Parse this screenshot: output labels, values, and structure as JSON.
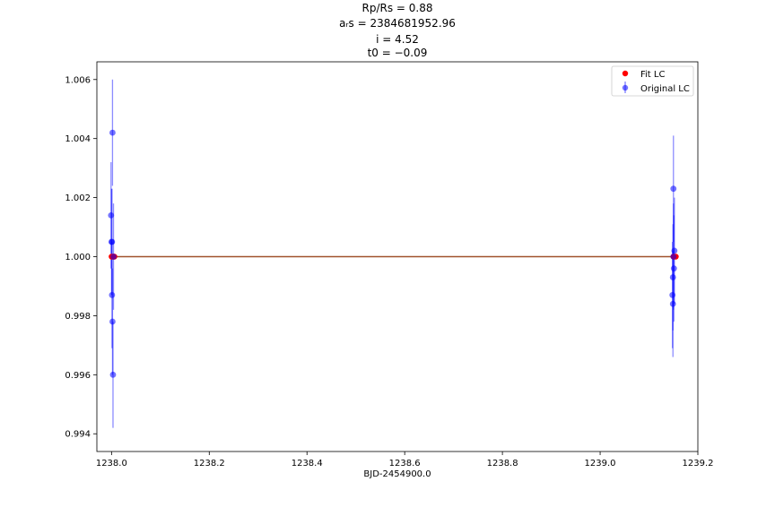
{
  "chart_data": {
    "type": "scatter",
    "title_lines": [
      "Rp/Rs = 0.88",
      "aᵣs = 2384681952.96",
      "i = 4.52",
      "t0 = −0.09"
    ],
    "xlabel": "BJD-2454900.0",
    "ylabel": "",
    "xlim": [
      1237.97,
      1239.2
    ],
    "ylim": [
      0.9934,
      1.0066
    ],
    "xticks": [
      {
        "value": 1238.0,
        "label": "1238.0"
      },
      {
        "value": 1238.2,
        "label": "1238.2"
      },
      {
        "value": 1238.4,
        "label": "1238.4"
      },
      {
        "value": 1238.6,
        "label": "1238.6"
      },
      {
        "value": 1238.8,
        "label": "1238.8"
      },
      {
        "value": 1239.0,
        "label": "1239.0"
      },
      {
        "value": 1239.2,
        "label": "1239.2"
      }
    ],
    "yticks": [
      {
        "value": 0.994,
        "label": "0.994"
      },
      {
        "value": 0.996,
        "label": "0.996"
      },
      {
        "value": 0.998,
        "label": "0.998"
      },
      {
        "value": 1.0,
        "label": "1.000"
      },
      {
        "value": 1.002,
        "label": "1.002"
      },
      {
        "value": 1.004,
        "label": "1.004"
      },
      {
        "value": 1.006,
        "label": "1.006"
      }
    ],
    "legend": {
      "position": "top-right",
      "entries": [
        {
          "name": "Fit LC",
          "marker": "point",
          "color": "#ff0000"
        },
        {
          "name": "Original LC",
          "marker": "errorbar",
          "color": "#0000ff"
        }
      ]
    },
    "fit_lc": {
      "name": "Fit LC",
      "color": "#ff0000",
      "line_color": "#a0522d",
      "x": [
        1238.0,
        1238.002,
        1238.004,
        1238.006,
        1239.15,
        1239.152,
        1239.155
      ],
      "y": [
        1.0,
        1.0,
        1.0,
        1.0,
        1.0,
        1.0,
        1.0
      ]
    },
    "original_lc": {
      "name": "Original LC",
      "color": "#0000ff",
      "points": [
        {
          "x": 1237.999,
          "y": 1.0014,
          "err": 0.0018
        },
        {
          "x": 1238.0,
          "y": 1.0005,
          "err": 0.0018
        },
        {
          "x": 1238.001,
          "y": 1.0005,
          "err": 0.0018
        },
        {
          "x": 1238.001,
          "y": 0.9987,
          "err": 0.0018
        },
        {
          "x": 1238.002,
          "y": 0.9978,
          "err": 0.0018
        },
        {
          "x": 1238.002,
          "y": 1.0042,
          "err": 0.0018
        },
        {
          "x": 1238.003,
          "y": 0.996,
          "err": 0.0018
        },
        {
          "x": 1238.004,
          "y": 1.0,
          "err": 0.0018
        },
        {
          "x": 1239.148,
          "y": 0.9987,
          "err": 0.0018
        },
        {
          "x": 1239.149,
          "y": 0.9993,
          "err": 0.0018
        },
        {
          "x": 1239.149,
          "y": 0.9984,
          "err": 0.0018
        },
        {
          "x": 1239.15,
          "y": 1.0023,
          "err": 0.0018
        },
        {
          "x": 1239.15,
          "y": 1.0,
          "err": 0.0018
        },
        {
          "x": 1239.151,
          "y": 0.9996,
          "err": 0.0018
        },
        {
          "x": 1239.152,
          "y": 1.0002,
          "err": 0.0018
        }
      ]
    }
  }
}
